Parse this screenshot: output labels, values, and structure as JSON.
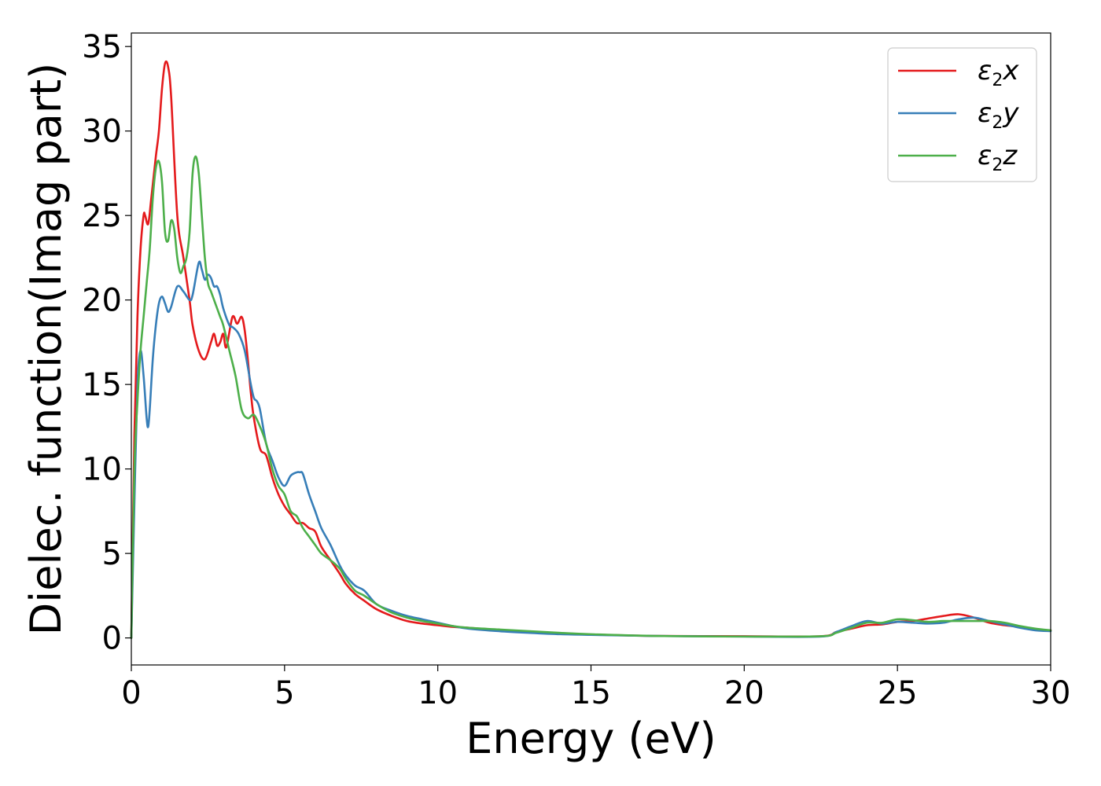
{
  "chart_data": {
    "type": "line",
    "xlabel": "Energy (eV)",
    "ylabel": "Dielec. function(Imag part)",
    "xlim": [
      0,
      30
    ],
    "ylim": [
      -1.6,
      35.8
    ],
    "xticks": [
      0,
      5,
      10,
      15,
      20,
      25,
      30
    ],
    "yticks": [
      0,
      5,
      10,
      15,
      20,
      25,
      30,
      35
    ],
    "grid": false,
    "legend_position": "top-right",
    "series": [
      {
        "name_base": "ε",
        "name_sub": "2",
        "name_suffix": "x",
        "color": "#e41a1c",
        "x": [
          0,
          0.1,
          0.2,
          0.3,
          0.4,
          0.45,
          0.55,
          0.65,
          0.8,
          0.9,
          1.0,
          1.1,
          1.2,
          1.3,
          1.5,
          1.7,
          1.9,
          2.0,
          2.2,
          2.4,
          2.6,
          2.7,
          2.8,
          2.9,
          3.0,
          3.1,
          3.3,
          3.45,
          3.6,
          3.7,
          3.8,
          3.9,
          4.0,
          4.2,
          4.4,
          4.6,
          4.8,
          5.0,
          5.2,
          5.4,
          5.6,
          5.8,
          6.0,
          6.2,
          6.5,
          6.8,
          7.0,
          7.3,
          7.6,
          8.0,
          8.5,
          9.0,
          9.5,
          10.0,
          10.5,
          11.0,
          12.0,
          13.0,
          14.0,
          15.0,
          17.0,
          20.0,
          22.5,
          23.0,
          23.5,
          24.0,
          24.5,
          25.0,
          25.5,
          26.0,
          26.5,
          27.0,
          27.5,
          28.0,
          28.5,
          29.0,
          29.5,
          30.0
        ],
        "y": [
          0,
          12,
          19,
          23,
          25,
          25,
          24.5,
          26,
          28.5,
          30,
          32.5,
          34,
          33.8,
          32,
          25,
          22.5,
          20,
          18.5,
          17,
          16.5,
          17.5,
          18,
          17.3,
          17.5,
          18,
          17.2,
          19,
          18.6,
          19,
          18.2,
          16.5,
          14.5,
          13,
          11.2,
          10.8,
          9.5,
          8.5,
          7.8,
          7.3,
          6.8,
          6.8,
          6.5,
          6.3,
          5.4,
          4.6,
          3.8,
          3.2,
          2.6,
          2.2,
          1.7,
          1.3,
          1.0,
          0.85,
          0.75,
          0.65,
          0.6,
          0.45,
          0.35,
          0.25,
          0.2,
          0.12,
          0.1,
          0.1,
          0.35,
          0.55,
          0.75,
          0.8,
          0.95,
          1.0,
          1.15,
          1.3,
          1.4,
          1.2,
          0.9,
          0.75,
          0.65,
          0.5,
          0.45
        ]
      },
      {
        "name_base": "ε",
        "name_sub": "2",
        "name_suffix": "y",
        "color": "#377eb8",
        "x": [
          0,
          0.1,
          0.2,
          0.3,
          0.4,
          0.5,
          0.55,
          0.6,
          0.7,
          0.8,
          0.9,
          1.0,
          1.1,
          1.2,
          1.3,
          1.5,
          1.7,
          1.9,
          2.0,
          2.2,
          2.3,
          2.4,
          2.5,
          2.6,
          2.7,
          2.8,
          2.9,
          3.0,
          3.2,
          3.3,
          3.5,
          3.7,
          3.9,
          4.0,
          4.1,
          4.2,
          4.4,
          4.6,
          4.8,
          5.0,
          5.2,
          5.4,
          5.5,
          5.6,
          5.8,
          6.0,
          6.2,
          6.5,
          6.8,
          7.0,
          7.3,
          7.6,
          8.0,
          8.5,
          9.0,
          9.5,
          10.0,
          10.5,
          11.0,
          12.0,
          13.0,
          14.0,
          15.0,
          17.0,
          20.0,
          22.5,
          23.0,
          23.5,
          24.0,
          24.5,
          25.0,
          25.5,
          26.0,
          26.5,
          27.0,
          27.5,
          28.0,
          28.5,
          29.0,
          29.5,
          30.0
        ],
        "y": [
          0,
          8,
          15,
          17,
          15.5,
          13,
          12.5,
          13.5,
          16.5,
          18.5,
          19.8,
          20.2,
          19.8,
          19.3,
          19.6,
          20.8,
          20.5,
          20,
          20.3,
          22.2,
          21.8,
          21.2,
          21.5,
          21.3,
          20.8,
          20.8,
          20.3,
          19.5,
          18.5,
          18.4,
          18,
          17,
          15,
          14.2,
          14,
          13.5,
          11.5,
          10.5,
          9.5,
          9.0,
          9.6,
          9.8,
          9.8,
          9.7,
          8.5,
          7.5,
          6.5,
          5.5,
          4.3,
          3.7,
          3.1,
          2.8,
          2.0,
          1.6,
          1.3,
          1.1,
          0.9,
          0.7,
          0.55,
          0.4,
          0.3,
          0.22,
          0.18,
          0.12,
          0.08,
          0.08,
          0.35,
          0.7,
          1.0,
          0.85,
          0.95,
          0.9,
          0.85,
          0.9,
          1.1,
          1.2,
          1.0,
          0.8,
          0.6,
          0.45,
          0.4
        ]
      },
      {
        "name_base": "ε",
        "name_sub": "2",
        "name_suffix": "z",
        "color": "#4daf4a",
        "x": [
          0,
          0.1,
          0.2,
          0.3,
          0.4,
          0.5,
          0.6,
          0.7,
          0.8,
          0.9,
          1.0,
          1.1,
          1.2,
          1.3,
          1.4,
          1.5,
          1.6,
          1.7,
          1.8,
          1.9,
          2.0,
          2.1,
          2.2,
          2.3,
          2.4,
          2.5,
          2.6,
          2.7,
          2.8,
          2.9,
          3.0,
          3.2,
          3.4,
          3.6,
          3.8,
          4.0,
          4.2,
          4.4,
          4.6,
          4.8,
          5.0,
          5.2,
          5.4,
          5.6,
          5.8,
          6.0,
          6.2,
          6.5,
          6.8,
          7.0,
          7.3,
          7.6,
          8.0,
          8.5,
          9.0,
          9.5,
          10.0,
          10.5,
          11.0,
          12.0,
          13.0,
          14.0,
          15.0,
          17.0,
          20.0,
          22.5,
          23.0,
          23.5,
          24.0,
          24.5,
          25.0,
          25.5,
          26.0,
          26.5,
          27.0,
          27.5,
          28.0,
          28.5,
          29.0,
          29.5,
          30.0
        ],
        "y": [
          0,
          10,
          14,
          17,
          19,
          21,
          23,
          26,
          27.8,
          28.2,
          27,
          24,
          23.5,
          24.7,
          24.2,
          22.5,
          21.6,
          22.0,
          22.5,
          24,
          27.5,
          28.5,
          27.5,
          25,
          22.5,
          21,
          20.5,
          20,
          19.5,
          19,
          18.5,
          17,
          15.5,
          13.5,
          13,
          13.2,
          12.5,
          11.5,
          10,
          9.0,
          8.5,
          7.5,
          7.2,
          6.5,
          6.0,
          5.5,
          5.0,
          4.6,
          4.1,
          3.5,
          2.8,
          2.5,
          2.0,
          1.5,
          1.2,
          1.0,
          0.85,
          0.7,
          0.6,
          0.5,
          0.4,
          0.3,
          0.22,
          0.12,
          0.08,
          0.1,
          0.3,
          0.6,
          0.9,
          0.9,
          1.1,
          1.05,
          0.95,
          1.0,
          1.0,
          1.0,
          1.0,
          0.9,
          0.7,
          0.55,
          0.45
        ]
      }
    ]
  }
}
